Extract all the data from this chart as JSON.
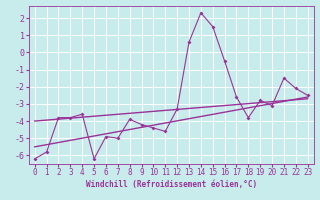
{
  "title": "",
  "xlabel": "Windchill (Refroidissement éolien,°C)",
  "background_color": "#c8ecec",
  "grid_color": "#ffffff",
  "line_color": "#993399",
  "x_ticks": [
    0,
    1,
    2,
    3,
    4,
    5,
    6,
    7,
    8,
    9,
    10,
    11,
    12,
    13,
    14,
    15,
    16,
    17,
    18,
    19,
    20,
    21,
    22,
    23
  ],
  "ylim": [
    -6.5,
    2.7
  ],
  "xlim": [
    -0.5,
    23.5
  ],
  "yticks": [
    -6,
    -5,
    -4,
    -3,
    -2,
    -1,
    0,
    1,
    2
  ],
  "scatter_x": [
    0,
    1,
    2,
    3,
    4,
    5,
    6,
    7,
    8,
    9,
    10,
    11,
    12,
    13,
    14,
    15,
    16,
    17,
    18,
    19,
    20,
    21,
    22,
    23
  ],
  "scatter_y": [
    -6.2,
    -5.8,
    -3.8,
    -3.8,
    -3.6,
    -6.2,
    -4.9,
    -5.0,
    -3.9,
    -4.2,
    -4.4,
    -4.6,
    -3.3,
    0.6,
    2.3,
    1.5,
    -0.5,
    -2.6,
    -3.8,
    -2.8,
    -3.1,
    -1.5,
    -2.1,
    -2.5
  ],
  "trend1_x": [
    0,
    23
  ],
  "trend1_y": [
    -5.5,
    -2.6
  ],
  "trend2_x": [
    0,
    23
  ],
  "trend2_y": [
    -4.0,
    -2.7
  ],
  "tick_fontsize": 5.5,
  "xlabel_fontsize": 5.5,
  "marker_size": 2.0,
  "line_width": 0.8
}
